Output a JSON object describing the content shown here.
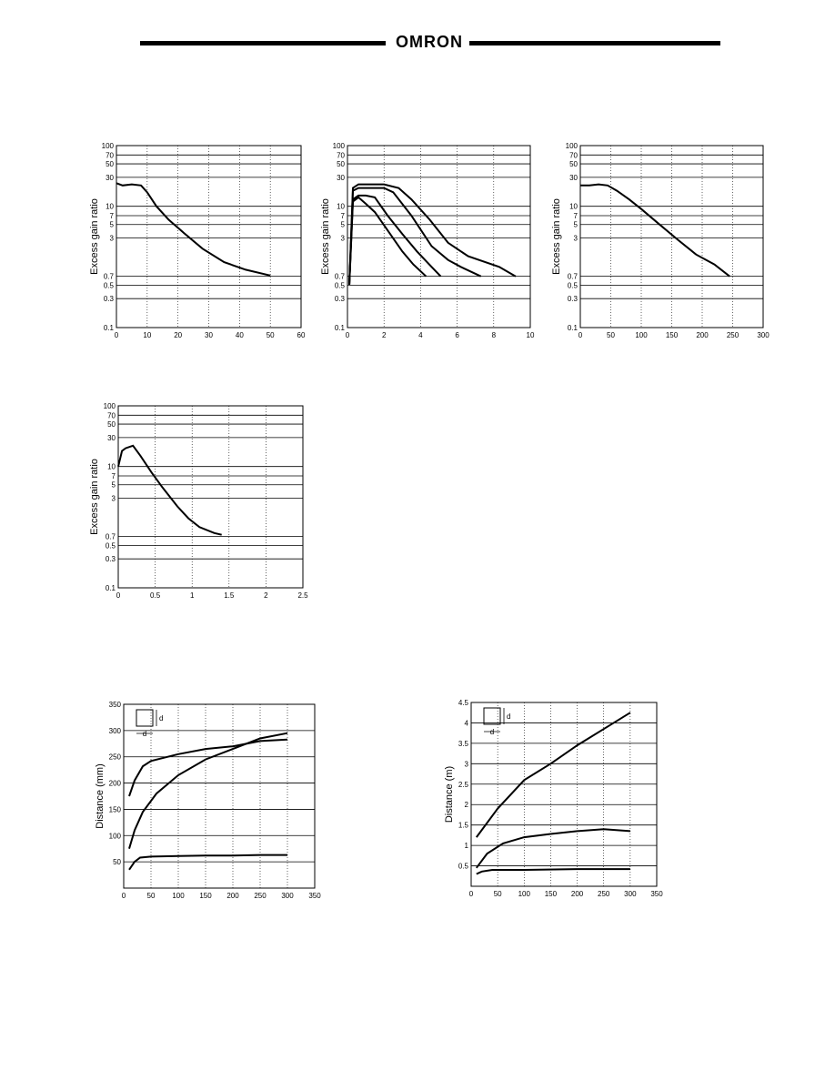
{
  "header": {
    "brand": "OMRON"
  },
  "chart_data": [
    {
      "type": "line",
      "ylabel": "Excess gain ratio",
      "xlabel": "",
      "yscale": "log",
      "xlim": [
        0,
        60
      ],
      "ylim": [
        0.1,
        100
      ],
      "xticks": [
        "0",
        "10",
        "20",
        "30",
        "40",
        "50",
        "60"
      ],
      "xtick_values": [
        0,
        10,
        20,
        30,
        40,
        50,
        60
      ],
      "yticks": [
        "100",
        "70",
        "50",
        "30",
        "10",
        "7",
        "5",
        "3",
        "0.7",
        "0.5",
        "0.3",
        "0.1"
      ],
      "ytick_values": [
        100,
        70,
        50,
        30,
        10,
        7,
        5,
        3,
        0.7,
        0.5,
        0.3,
        0.1
      ],
      "series": [
        {
          "x": [
            0,
            2,
            5,
            8,
            10,
            13,
            17,
            22,
            28,
            35,
            42,
            50
          ],
          "y": [
            24,
            22,
            23,
            22,
            17,
            10,
            6,
            3.6,
            2,
            1.2,
            0.9,
            0.72
          ]
        }
      ]
    },
    {
      "type": "line",
      "ylabel": "Excess gain ratio",
      "xlabel": "",
      "yscale": "log",
      "xlim": [
        0,
        10
      ],
      "ylim": [
        0.1,
        100
      ],
      "xticks": [
        "0",
        "2",
        "4",
        "6",
        "8",
        "10"
      ],
      "xtick_values": [
        0,
        2,
        4,
        6,
        8,
        10
      ],
      "yticks": [
        "100",
        "70",
        "50",
        "30",
        "10",
        "7",
        "5",
        "3",
        "0.7",
        "0.5",
        "0.3",
        "0.1"
      ],
      "ytick_values": [
        100,
        70,
        50,
        30,
        10,
        7,
        5,
        3,
        0.7,
        0.5,
        0.3,
        0.1
      ],
      "series": [
        {
          "x": [
            0.1,
            0.3,
            0.6,
            1,
            1.5,
            2.2,
            3,
            3.6,
            4.3
          ],
          "y": [
            0.5,
            12,
            14,
            11,
            8,
            4,
            1.8,
            1.1,
            0.7
          ]
        },
        {
          "x": [
            0.1,
            0.3,
            0.6,
            1,
            1.5,
            2.2,
            3,
            3.8,
            4.6,
            5.1
          ],
          "y": [
            0.5,
            13,
            15,
            15,
            14,
            7,
            3.5,
            1.8,
            1.0,
            0.7
          ]
        },
        {
          "x": [
            0.1,
            0.3,
            0.6,
            1.2,
            2,
            2.5,
            3.5,
            4.6,
            5.5,
            6.2,
            7.3
          ],
          "y": [
            0.5,
            18,
            20,
            20,
            20,
            17,
            7,
            2.2,
            1.3,
            1.0,
            0.7
          ]
        },
        {
          "x": [
            0.1,
            0.3,
            0.6,
            1.2,
            2,
            2.8,
            3.5,
            4.5,
            5.5,
            6.6,
            8.3,
            9.2
          ],
          "y": [
            0.5,
            20,
            23,
            23,
            23,
            20,
            13,
            6,
            2.5,
            1.5,
            1.0,
            0.7
          ]
        }
      ]
    },
    {
      "type": "line",
      "ylabel": "Excess gain ratio",
      "xlabel": "",
      "yscale": "log",
      "xlim": [
        0,
        300
      ],
      "ylim": [
        0.1,
        100
      ],
      "xticks": [
        "0",
        "50",
        "100",
        "150",
        "200",
        "250",
        "300"
      ],
      "xtick_values": [
        0,
        50,
        100,
        150,
        200,
        250,
        300
      ],
      "yticks": [
        "100",
        "70",
        "50",
        "30",
        "10",
        "7",
        "5",
        "3",
        "0.7",
        "0.5",
        "0.3",
        "0.1"
      ],
      "ytick_values": [
        100,
        70,
        50,
        30,
        10,
        7,
        5,
        3,
        0.7,
        0.5,
        0.3,
        0.1
      ],
      "series": [
        {
          "x": [
            0,
            15,
            30,
            45,
            60,
            80,
            100,
            130,
            160,
            190,
            220,
            245
          ],
          "y": [
            22,
            22,
            23,
            22,
            18,
            13,
            9,
            5,
            2.8,
            1.6,
            1.1,
            0.7
          ]
        }
      ]
    },
    {
      "type": "line",
      "ylabel": "Excess gain ratio",
      "xlabel": "",
      "yscale": "log",
      "xlim": [
        0,
        2.5
      ],
      "ylim": [
        0.1,
        100
      ],
      "xticks": [
        "0",
        "0.5",
        "1",
        "1.5",
        "2",
        "2.5"
      ],
      "xtick_values": [
        0,
        0.5,
        1,
        1.5,
        2,
        2.5
      ],
      "yticks": [
        "100",
        "70",
        "50",
        "30",
        "10",
        "7",
        "5",
        "3",
        "0.7",
        "0.5",
        "0.3",
        "0.1"
      ],
      "ytick_values": [
        100,
        70,
        50,
        30,
        10,
        7,
        5,
        3,
        0.7,
        0.5,
        0.3,
        0.1
      ],
      "series": [
        {
          "x": [
            0,
            0.05,
            0.1,
            0.2,
            0.3,
            0.45,
            0.6,
            0.8,
            0.95,
            1.1,
            1.3,
            1.4
          ],
          "y": [
            10,
            18,
            20,
            22,
            15,
            8,
            4.5,
            2.2,
            1.4,
            1.0,
            0.8,
            0.75
          ]
        }
      ]
    },
    {
      "type": "line",
      "ylabel": "Distance (mm)",
      "xlabel": "",
      "yscale": "linear",
      "xlim": [
        0,
        350
      ],
      "ylim": [
        0,
        350
      ],
      "xticks": [
        "0",
        "50",
        "100",
        "150",
        "200",
        "250",
        "300",
        "350"
      ],
      "xtick_values": [
        0,
        50,
        100,
        150,
        200,
        250,
        300,
        350
      ],
      "yticks": [
        "350",
        "300",
        "250",
        "200",
        "150",
        "100",
        "50"
      ],
      "ytick_values": [
        350,
        300,
        250,
        200,
        150,
        100,
        50
      ],
      "legend_labels": [
        "d",
        "d"
      ],
      "series": [
        {
          "x": [
            10,
            20,
            35,
            50,
            100,
            150,
            200,
            250,
            300
          ],
          "y": [
            175,
            205,
            232,
            242,
            255,
            265,
            270,
            280,
            283
          ]
        },
        {
          "x": [
            10,
            20,
            35,
            60,
            100,
            150,
            200,
            250,
            300
          ],
          "y": [
            75,
            110,
            145,
            180,
            215,
            245,
            265,
            285,
            295
          ]
        },
        {
          "x": [
            10,
            20,
            30,
            50,
            100,
            150,
            200,
            250,
            300
          ],
          "y": [
            35,
            50,
            58,
            60,
            61,
            62,
            62,
            63,
            63
          ]
        }
      ]
    },
    {
      "type": "line",
      "ylabel": "Distance (m)",
      "xlabel": "",
      "yscale": "linear",
      "xlim": [
        0,
        350
      ],
      "ylim": [
        0,
        4.5
      ],
      "xticks": [
        "0",
        "50",
        "100",
        "150",
        "200",
        "250",
        "300",
        "350"
      ],
      "xtick_values": [
        0,
        50,
        100,
        150,
        200,
        250,
        300,
        350
      ],
      "yticks": [
        "4.5",
        "4",
        "3.5",
        "3",
        "2.5",
        "2",
        "1.5",
        "1",
        "0.5"
      ],
      "ytick_values": [
        4.5,
        4,
        3.5,
        3,
        2.5,
        2,
        1.5,
        1,
        0.5
      ],
      "legend_labels": [
        "d",
        "d"
      ],
      "series": [
        {
          "x": [
            10,
            50,
            100,
            150,
            200,
            250,
            300
          ],
          "y": [
            1.2,
            1.9,
            2.6,
            3.0,
            3.45,
            3.85,
            4.25
          ]
        },
        {
          "x": [
            10,
            30,
            60,
            100,
            150,
            200,
            250,
            300
          ],
          "y": [
            0.45,
            0.8,
            1.05,
            1.2,
            1.28,
            1.35,
            1.4,
            1.35
          ]
        },
        {
          "x": [
            10,
            20,
            40,
            100,
            200,
            300
          ],
          "y": [
            0.3,
            0.36,
            0.4,
            0.4,
            0.42,
            0.42
          ]
        }
      ]
    }
  ]
}
